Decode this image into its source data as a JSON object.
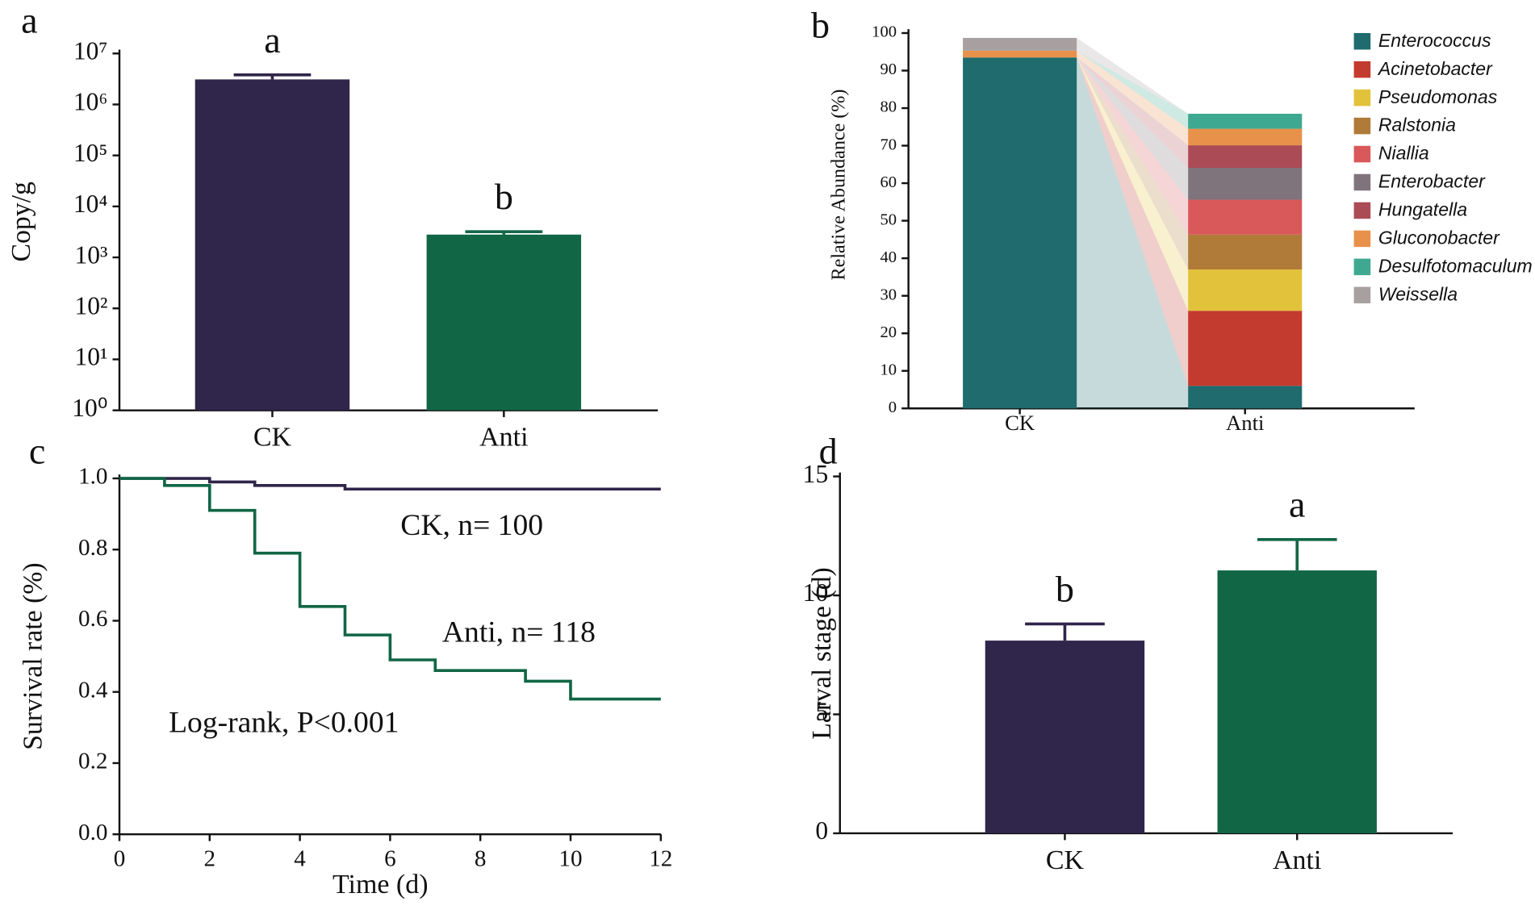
{
  "chart_data": [
    {
      "type": "bar",
      "panel_label": "a",
      "y_label": "Copy/g",
      "log_scale": true,
      "categories": [
        "CK",
        "Anti"
      ],
      "values": [
        3100000,
        2800
      ],
      "errors": [
        700000,
        400
      ],
      "letters": [
        "a",
        "b"
      ],
      "colors": [
        "#30254a",
        "#116646"
      ],
      "ylim": [
        1,
        10000000
      ],
      "yticks": [
        {
          "value": 1,
          "label": "10⁰"
        },
        {
          "value": 10,
          "label": "10¹"
        },
        {
          "value": 100,
          "label": "10²"
        },
        {
          "value": 1000,
          "label": "10³"
        },
        {
          "value": 10000,
          "label": "10⁴"
        },
        {
          "value": 100000,
          "label": "10⁵"
        },
        {
          "value": 1000000,
          "label": "10⁶"
        },
        {
          "value": 10000000,
          "label": "10⁷"
        }
      ]
    },
    {
      "type": "stacked_bar",
      "panel_label": "b",
      "y_label": "Relative Abundance (%)",
      "categories": [
        "CK",
        "Anti"
      ],
      "series": [
        {
          "name": "Enterococcus",
          "color": "#1f6b6e",
          "values": [
            93.5,
            6
          ]
        },
        {
          "name": "Acinetobacter",
          "color": "#c33a2e",
          "values": [
            0,
            20
          ]
        },
        {
          "name": "Pseudomonas",
          "color": "#e2c23a",
          "values": [
            0,
            11
          ]
        },
        {
          "name": "Ralstonia",
          "color": "#b07a38",
          "values": [
            0,
            9.3
          ]
        },
        {
          "name": "Niallia",
          "color": "#d9585a",
          "values": [
            0,
            9.3
          ]
        },
        {
          "name": "Enterobacter",
          "color": "#7f737c",
          "values": [
            0,
            8.5
          ]
        },
        {
          "name": "Hungatella",
          "color": "#ab4b56",
          "values": [
            0,
            6
          ]
        },
        {
          "name": "Gluconobacter",
          "color": "#e8914a",
          "values": [
            1.8,
            4.4
          ]
        },
        {
          "name": "Desulfotomaculum",
          "color": "#3fa890",
          "values": [
            0,
            4
          ]
        },
        {
          "name": "Weissella",
          "color": "#a8a0a0",
          "values": [
            3.4,
            0
          ]
        }
      ],
      "ylim": [
        0,
        100
      ],
      "yticks": [
        0,
        10,
        20,
        30,
        40,
        50,
        60,
        70,
        80,
        90,
        100
      ]
    },
    {
      "type": "step",
      "panel_label": "c",
      "x_label": "Time (d)",
      "y_label": "Survival rate (%)",
      "series": [
        {
          "name": "CK",
          "color": "#30254a",
          "x": [
            0,
            2,
            3,
            5,
            12
          ],
          "values": [
            1.0,
            0.99,
            0.98,
            0.97,
            0.97
          ]
        },
        {
          "name": "Anti",
          "color": "#116646",
          "x": [
            0,
            1,
            2,
            3,
            4,
            5,
            6,
            7,
            9,
            10,
            12
          ],
          "values": [
            1.0,
            0.98,
            0.91,
            0.79,
            0.64,
            0.56,
            0.49,
            0.46,
            0.43,
            0.38,
            0.38
          ]
        }
      ],
      "annotations": [
        "CK, n= 100",
        "Anti, n= 118",
        "Log-rank, P<0.001"
      ],
      "xlim": [
        0,
        12
      ],
      "xticks": [
        0,
        2,
        4,
        6,
        8,
        10,
        12
      ],
      "ylim": [
        0,
        1
      ],
      "yticks": [
        {
          "value": 0,
          "label": "0.0"
        },
        {
          "value": 0.2,
          "label": "0.2"
        },
        {
          "value": 0.4,
          "label": "0.4"
        },
        {
          "value": 0.6,
          "label": "0.6"
        },
        {
          "value": 0.8,
          "label": "0.8"
        },
        {
          "value": 1,
          "label": "1.0"
        }
      ]
    },
    {
      "type": "bar",
      "panel_label": "d",
      "y_label": "Larval stage (d)",
      "log_scale": false,
      "categories": [
        "CK",
        "Anti"
      ],
      "values": [
        8.1,
        11.05
      ],
      "errors": [
        0.7,
        1.3
      ],
      "letters": [
        "b",
        "a"
      ],
      "colors": [
        "#30254a",
        "#116646"
      ],
      "ylim": [
        0,
        15
      ],
      "yticks": [
        0,
        5,
        10,
        15
      ]
    }
  ]
}
